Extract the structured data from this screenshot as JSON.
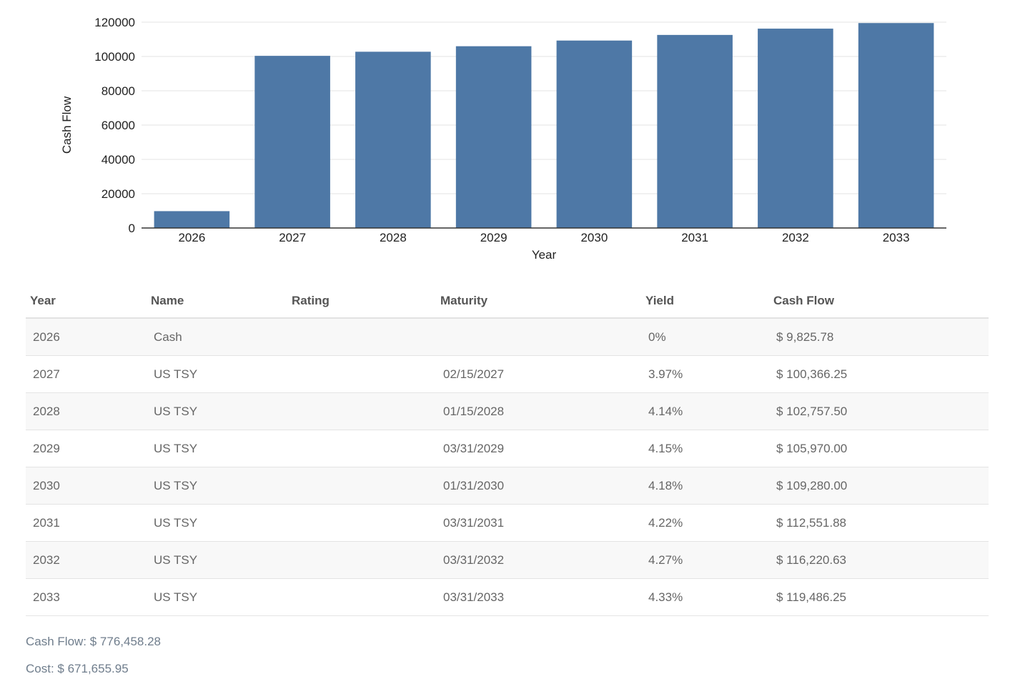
{
  "chart_data": {
    "type": "bar",
    "categories": [
      "2026",
      "2027",
      "2028",
      "2029",
      "2030",
      "2031",
      "2032",
      "2033"
    ],
    "values": [
      9825.78,
      100366.25,
      102757.5,
      105970.0,
      109280.0,
      112551.88,
      116220.63,
      119486.25
    ],
    "xlabel": "Year",
    "ylabel": "Cash Flow",
    "ylim": [
      0,
      120000
    ],
    "yticks": [
      0,
      20000,
      40000,
      60000,
      80000,
      100000,
      120000
    ],
    "grid": true,
    "bar_color": "#4e78a6"
  },
  "table": {
    "headers": [
      "Year",
      "Name",
      "Rating",
      "Maturity",
      "Yield",
      "Cash Flow"
    ],
    "rows": [
      [
        "2026",
        "Cash",
        "",
        "",
        "0%",
        "$ 9,825.78"
      ],
      [
        "2027",
        "US TSY",
        "",
        "02/15/2027",
        "3.97%",
        "$ 100,366.25"
      ],
      [
        "2028",
        "US TSY",
        "",
        "01/15/2028",
        "4.14%",
        "$ 102,757.50"
      ],
      [
        "2029",
        "US TSY",
        "",
        "03/31/2029",
        "4.15%",
        "$ 105,970.00"
      ],
      [
        "2030",
        "US TSY",
        "",
        "01/31/2030",
        "4.18%",
        "$ 109,280.00"
      ],
      [
        "2031",
        "US TSY",
        "",
        "03/31/2031",
        "4.22%",
        "$ 112,551.88"
      ],
      [
        "2032",
        "US TSY",
        "",
        "03/31/2032",
        "4.27%",
        "$ 116,220.63"
      ],
      [
        "2033",
        "US TSY",
        "",
        "03/31/2033",
        "4.33%",
        "$ 119,486.25"
      ]
    ]
  },
  "summary": {
    "cash_flow": "Cash Flow: $ 776,458.28",
    "cost": "Cost: $ 671,655.95"
  }
}
